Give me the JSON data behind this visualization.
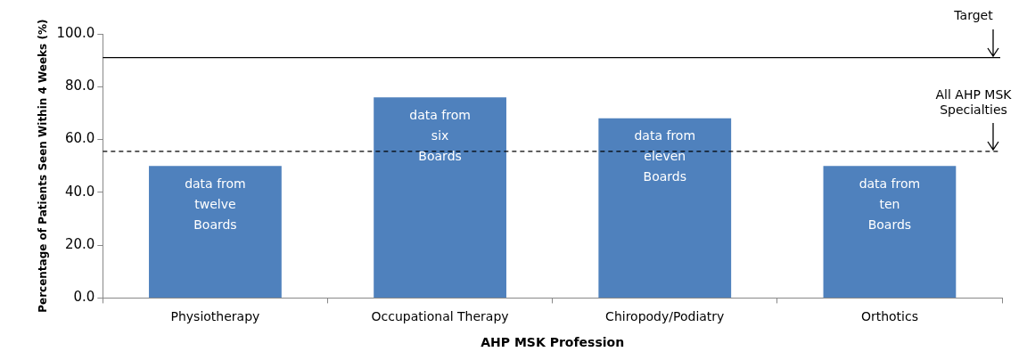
{
  "chart_data": {
    "type": "bar",
    "xlabel": "AHP MSK Profession",
    "ylabel": "Percentage of Patients Seen Within 4 Weeks (%)",
    "categories": [
      "Physiotherapy",
      "Occupational Therapy",
      "Chiropody/Podiatry",
      "Orthotics"
    ],
    "values": [
      50,
      76,
      68,
      50
    ],
    "color": "#4f81bd",
    "ylim": [
      0,
      100
    ],
    "yticks": [
      {
        "value": 0,
        "label": "0.0"
      },
      {
        "value": 20,
        "label": "20.0"
      },
      {
        "value": 40,
        "label": "40.0"
      },
      {
        "value": 60,
        "label": "60.0"
      },
      {
        "value": 80,
        "label": "80.0"
      },
      {
        "value": 100,
        "label": "100.0"
      }
    ],
    "grid": false,
    "legend": false,
    "ref_lines": [
      {
        "axis": "y",
        "value": 91,
        "label": "Target",
        "color": "#000000",
        "line_style": "solid"
      },
      {
        "axis": "y",
        "value": 55.5,
        "label": "All AHP MSK Specialties",
        "color": "#000000",
        "line_style": "dashed"
      }
    ],
    "annotations": [
      "data from\ntwelve\nBoards",
      "data from\nsix\nBoards",
      "data from\neleven\nBoards",
      "data from\nten\nBoards"
    ]
  }
}
